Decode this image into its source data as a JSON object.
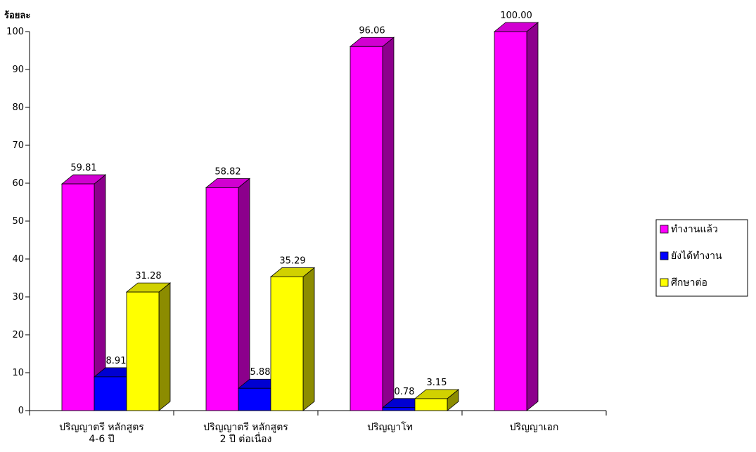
{
  "chart_data": {
    "type": "bar",
    "style": "3d-clustered",
    "ylabel": "ร้อยละ",
    "xlabel": "",
    "ylim": [
      0,
      100
    ],
    "yticks": [
      0,
      10,
      20,
      30,
      40,
      50,
      60,
      70,
      80,
      90,
      100
    ],
    "grid": false,
    "legend_position": "right",
    "categories": [
      [
        "ปริญญาตรี หลักสูตร",
        "4-6 ปี"
      ],
      [
        "ปริญญาตรี หลักสูตร",
        "2 ปี ต่อเนื่อง"
      ],
      [
        "ปริญญาโท"
      ],
      [
        "ปริญญาเอก"
      ]
    ],
    "series": [
      {
        "name": "ทำงานแล้ว",
        "color": "#ff00ff",
        "values": [
          59.81,
          58.82,
          96.06,
          100.0
        ],
        "labels": [
          "59.81",
          "58.82",
          "96.06",
          "100.00"
        ]
      },
      {
        "name": "ยังได้ทำงาน",
        "color": "#0000ff",
        "values": [
          8.91,
          5.88,
          0.78,
          null
        ],
        "labels": [
          "8.91",
          "5.88",
          "0.78",
          null
        ]
      },
      {
        "name": "ศึกษาต่อ",
        "color": "#ffff00",
        "values": [
          31.28,
          35.29,
          3.15,
          null
        ],
        "labels": [
          "31.28",
          "35.29",
          "3.15",
          null
        ]
      }
    ]
  }
}
